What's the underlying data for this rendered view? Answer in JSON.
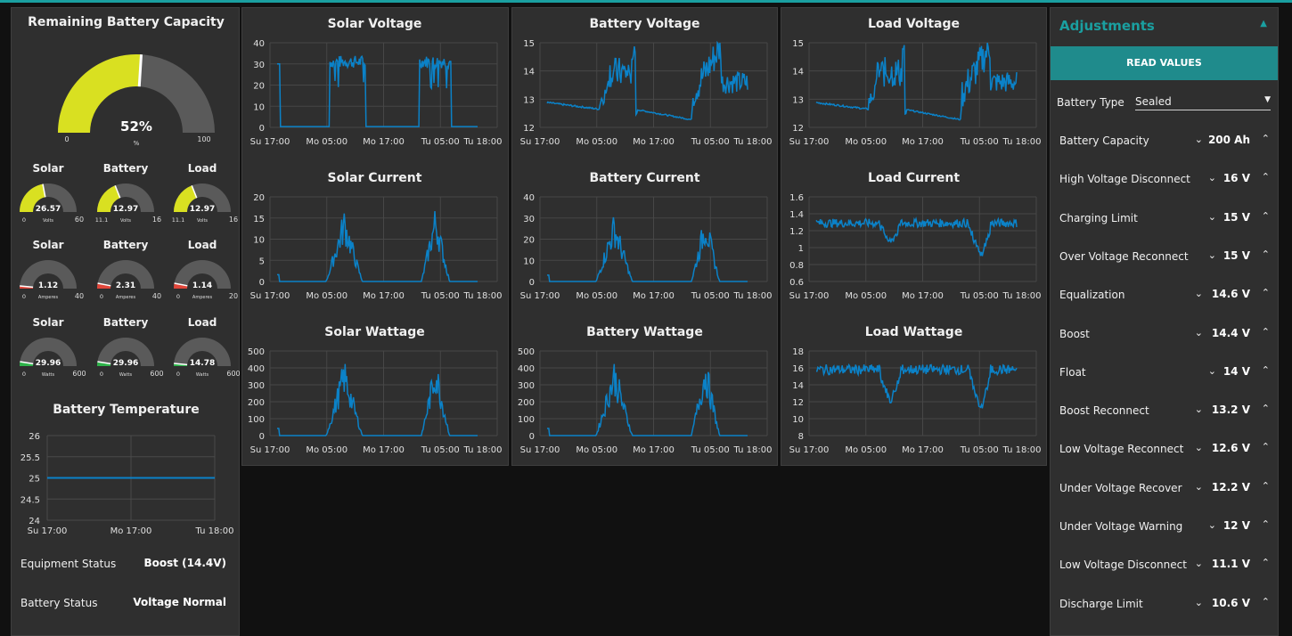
{
  "colors": {
    "accent": "#1a9fa0",
    "gauge_yellow": "#d9e021",
    "gauge_bg": "#5a5a5a",
    "line": "#0b82c8",
    "red": "#e0463a",
    "green": "#2fb34b"
  },
  "capacity": {
    "title": "Remaining Battery Capacity",
    "value_label": "52%",
    "fraction": 0.52,
    "min": "0",
    "unit": "%",
    "max": "100"
  },
  "mini_gauges": [
    {
      "title": "Solar",
      "value": "26.57",
      "min": "0",
      "unit": "Volts",
      "max": "60",
      "fraction": 0.44,
      "color": "#d9e021"
    },
    {
      "title": "Battery",
      "value": "12.97",
      "min": "11.1",
      "unit": "Volts",
      "max": "16",
      "fraction": 0.38,
      "color": "#d9e021"
    },
    {
      "title": "Load",
      "value": "12.97",
      "min": "11.1",
      "unit": "Volts",
      "max": "16",
      "fraction": 0.38,
      "color": "#d9e021"
    },
    {
      "title": "Solar",
      "value": "1.12",
      "min": "0",
      "unit": "Amperes",
      "max": "40",
      "fraction": 0.03,
      "color": "#e0463a"
    },
    {
      "title": "Battery",
      "value": "2.31",
      "min": "0",
      "unit": "Amperes",
      "max": "40",
      "fraction": 0.06,
      "color": "#e0463a"
    },
    {
      "title": "Load",
      "value": "1.14",
      "min": "0",
      "unit": "Amperes",
      "max": "20",
      "fraction": 0.06,
      "color": "#e0463a"
    },
    {
      "title": "Solar",
      "value": "29.96",
      "min": "0",
      "unit": "Watts",
      "max": "600",
      "fraction": 0.05,
      "color": "#2fb34b"
    },
    {
      "title": "Battery",
      "value": "29.96",
      "min": "0",
      "unit": "Watts",
      "max": "600",
      "fraction": 0.05,
      "color": "#2fb34b"
    },
    {
      "title": "Load",
      "value": "14.78",
      "min": "0",
      "unit": "Watts",
      "max": "600",
      "fraction": 0.03,
      "color": "#2fb34b"
    }
  ],
  "temperature": {
    "title": "Battery Temperature",
    "yticks": [
      "26",
      "25.5",
      "25",
      "24.5",
      "24"
    ],
    "xticks": [
      "Su 17:00",
      "Mo 17:00",
      "Tu 18:00"
    ],
    "value": 25
  },
  "status": {
    "equipment_label": "Equipment Status",
    "equipment_value": "Boost (14.4V)",
    "battery_label": "Battery Status",
    "battery_value": "Voltage Normal"
  },
  "xticks": [
    "Su 17:00",
    "Mo 05:00",
    "Mo 17:00",
    "Tu 05:00",
    "Tu 18:00"
  ],
  "chart_data": [
    {
      "type": "line",
      "title": "Solar Voltage",
      "ylim": [
        0,
        40
      ],
      "yticks": [
        0,
        10,
        20,
        30,
        40
      ],
      "shape": "solarV"
    },
    {
      "type": "line",
      "title": "Battery Voltage",
      "ylim": [
        12,
        15
      ],
      "yticks": [
        12,
        13,
        14,
        15
      ],
      "shape": "battV"
    },
    {
      "type": "line",
      "title": "Load Voltage",
      "ylim": [
        12,
        15
      ],
      "yticks": [
        12,
        13,
        14,
        15
      ],
      "shape": "battV"
    },
    {
      "type": "line",
      "title": "Solar Current",
      "ylim": [
        0,
        20
      ],
      "yticks": [
        0,
        5,
        10,
        15,
        20
      ],
      "shape": "curr",
      "peak": 16
    },
    {
      "type": "line",
      "title": "Battery Current",
      "ylim": [
        0,
        40
      ],
      "yticks": [
        0,
        10,
        20,
        30,
        40
      ],
      "shape": "curr",
      "peak": 30
    },
    {
      "type": "line",
      "title": "Load Current",
      "ylim": [
        0.6,
        1.6
      ],
      "yticks": [
        0.6,
        0.8,
        1,
        1.2,
        1.4,
        1.6
      ],
      "shape": "loadI"
    },
    {
      "type": "line",
      "title": "Solar Wattage",
      "ylim": [
        0,
        500
      ],
      "yticks": [
        0,
        100,
        200,
        300,
        400,
        500
      ],
      "shape": "curr",
      "peak": 420
    },
    {
      "type": "line",
      "title": "Battery Wattage",
      "ylim": [
        0,
        500
      ],
      "yticks": [
        0,
        100,
        200,
        300,
        400,
        500
      ],
      "shape": "curr",
      "peak": 420
    },
    {
      "type": "line",
      "title": "Load Wattage",
      "ylim": [
        8,
        18
      ],
      "yticks": [
        8,
        10,
        12,
        14,
        16,
        18
      ],
      "shape": "loadW"
    }
  ],
  "adjustments": {
    "title": "Adjustments",
    "read_button": "READ VALUES",
    "battery_type_label": "Battery Type",
    "battery_type_value": "Sealed",
    "rows": [
      {
        "label": "Battery Capacity",
        "value": "200 Ah"
      },
      {
        "label": "High Voltage Disconnect",
        "value": "16 V"
      },
      {
        "label": "Charging Limit",
        "value": "15 V"
      },
      {
        "label": "Over Voltage Reconnect",
        "value": "15 V"
      },
      {
        "label": "Equalization",
        "value": "14.6 V"
      },
      {
        "label": "Boost",
        "value": "14.4 V"
      },
      {
        "label": "Float",
        "value": "14 V"
      },
      {
        "label": "Boost Reconnect",
        "value": "13.2 V"
      },
      {
        "label": "Low Voltage Reconnect",
        "value": "12.6 V"
      },
      {
        "label": "Under Voltage Recover",
        "value": "12.2 V"
      },
      {
        "label": "Under Voltage Warning",
        "value": "12 V"
      },
      {
        "label": "Low Voltage Disconnect",
        "value": "11.1 V"
      },
      {
        "label": "Discharge Limit",
        "value": "10.6 V"
      }
    ]
  }
}
